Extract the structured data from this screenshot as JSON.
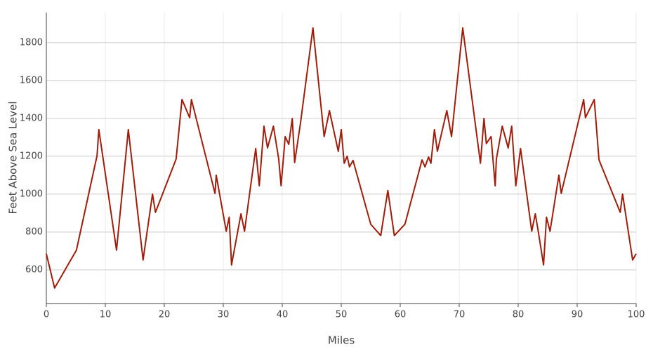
{
  "chart_data": {
    "type": "line",
    "x_label": "Miles",
    "y_label": "Feet Above Sea Level",
    "x": [
      0,
      1.4,
      5.1,
      8.6,
      8.9,
      11.9,
      13.9,
      16.4,
      18.0,
      18.5,
      22.0,
      23.0,
      24.3,
      24.6,
      28.6,
      28.8,
      30.5,
      31.0,
      31.4,
      33.0,
      33.6,
      35.5,
      36.1,
      36.9,
      37.5,
      38.5,
      39.4,
      39.8,
      40.5,
      41.1,
      41.7,
      42.1,
      43.1,
      45.2,
      47.1,
      48.0,
      49.5,
      50.0,
      50.5,
      51.0,
      51.4,
      52.0,
      55.0,
      56.7,
      57.9,
      59.0,
      60.8,
      63.7,
      64.2,
      64.8,
      65.2,
      65.8,
      66.3,
      67.9,
      68.7,
      70.6,
      73.6,
      74.2,
      74.6,
      75.4,
      76.1,
      76.3,
      77.3,
      78.3,
      78.9,
      79.6,
      80.4,
      82.3,
      82.9,
      83.4,
      84.3,
      84.8,
      85.4,
      86.9,
      87.3,
      91.1,
      91.4,
      92.9,
      93.7,
      97.3,
      97.7,
      99.4,
      100
    ],
    "series": [
      {
        "name": "Elevation",
        "color": "#a11d0b",
        "values": [
          685,
          504,
          704,
          1204,
          1341,
          704,
          1341,
          652,
          1000,
          904,
          1185,
          1500,
          1404,
          1500,
          1004,
          1100,
          804,
          878,
          626,
          896,
          804,
          1241,
          1044,
          1359,
          1244,
          1359,
          1185,
          1044,
          1304,
          1263,
          1400,
          1167,
          1378,
          1878,
          1304,
          1441,
          1226,
          1341,
          1163,
          1200,
          1144,
          1178,
          841,
          781,
          1019,
          781,
          841,
          1181,
          1144,
          1196,
          1163,
          1341,
          1226,
          1441,
          1304,
          1878,
          1163,
          1400,
          1267,
          1304,
          1044,
          1185,
          1359,
          1244,
          1359,
          1044,
          1241,
          804,
          896,
          804,
          626,
          878,
          804,
          1100,
          1004,
          1500,
          1404,
          1500,
          1181,
          904,
          1000,
          652,
          685
        ]
      }
    ],
    "xlim": [
      0,
      100
    ],
    "xticks": [
      0,
      10,
      20,
      30,
      40,
      50,
      60,
      70,
      80,
      90,
      100
    ],
    "ylim": [
      422,
      1959
    ],
    "yticks": [
      600,
      800,
      1000,
      1200,
      1400,
      1600,
      1800
    ],
    "grid": true
  }
}
